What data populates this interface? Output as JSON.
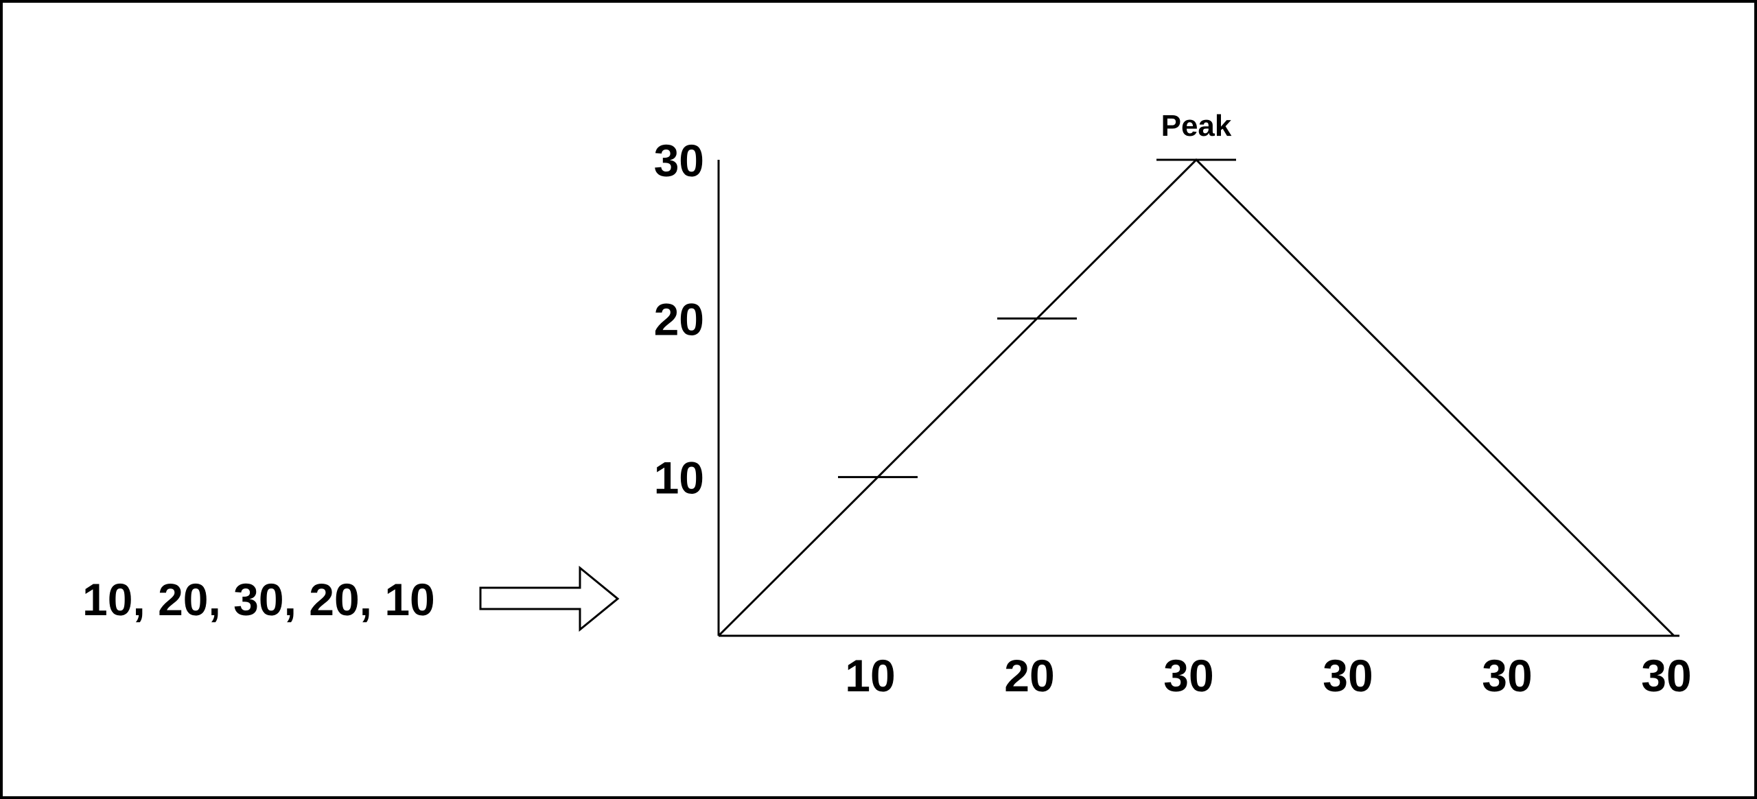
{
  "sequence_text": "10, 20, 30, 20, 10",
  "chart_data": {
    "type": "line",
    "title": "",
    "xlabel": "",
    "ylabel": "",
    "x_tick_labels": [
      "10",
      "20",
      "30",
      "30",
      "30",
      "30"
    ],
    "y_tick_labels": [
      "10",
      "20",
      "30"
    ],
    "ylim": [
      0,
      30
    ],
    "series": [
      {
        "x": [
          0,
          3,
          6
        ],
        "values": [
          0,
          30,
          0
        ]
      }
    ],
    "level_markers": [
      10,
      20,
      30
    ],
    "annotations": [
      {
        "text": "Peak",
        "y": 30
      }
    ],
    "grid": false,
    "legend": "none"
  },
  "colors": {
    "line": "#000000",
    "background": "#ffffff"
  },
  "icons": {
    "arrow": "right-arrow-icon"
  }
}
